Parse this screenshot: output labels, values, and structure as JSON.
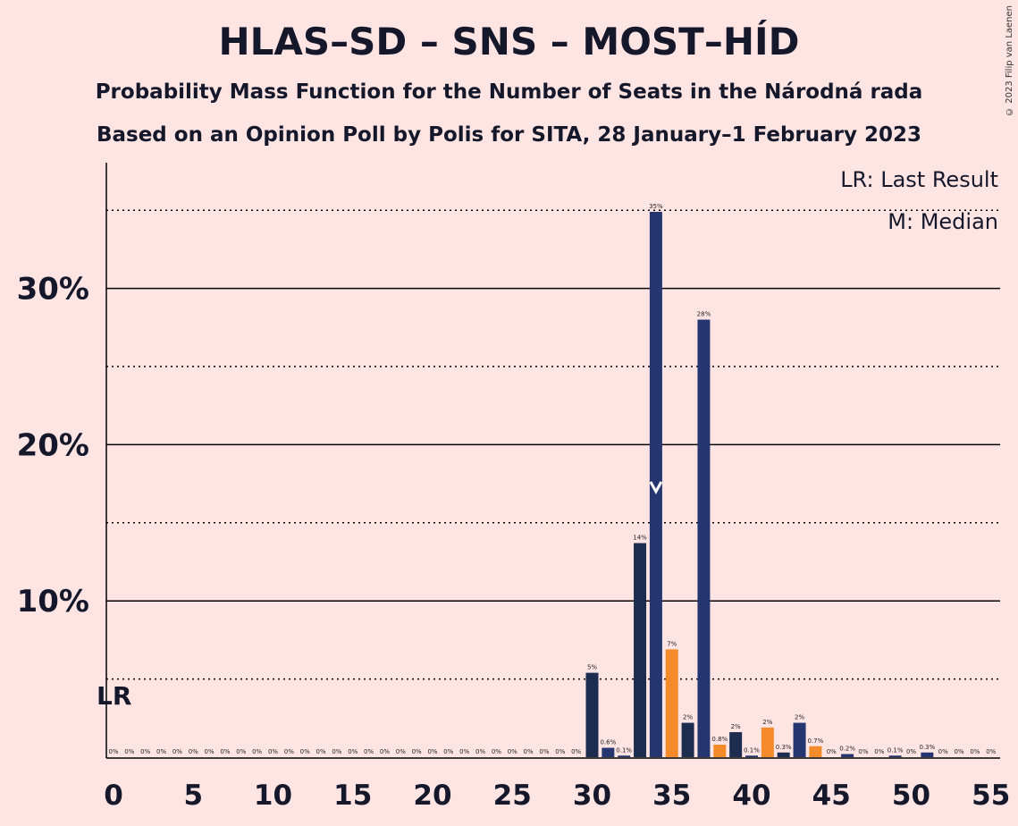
{
  "header": {
    "title": "HLAS–SD – SNS – MOST–HÍD",
    "subtitle1": "Probability Mass Function for the Number of Seats in the Národná rada",
    "subtitle2": "Based on an Opinion Poll by Polis for SITA, 28 January–1 February 2023",
    "copyright": "© 2023 Filip van Laenen"
  },
  "chart_data": {
    "type": "bar",
    "title": "HLAS–SD – SNS – MOST–HÍD",
    "xlabel": "",
    "ylabel": "",
    "xlim": [
      0,
      55
    ],
    "ylim": [
      0,
      38
    ],
    "x_ticks": [
      "0",
      "5",
      "10",
      "15",
      "20",
      "25",
      "30",
      "35",
      "40",
      "45",
      "50",
      "55"
    ],
    "y_ticks": [
      "10%",
      "20%",
      "30%"
    ],
    "y_gridlines_solid": [
      10,
      20,
      30
    ],
    "y_gridlines_dotted": [
      5,
      15,
      25,
      35
    ],
    "legend": [
      "LR: Last Result",
      "M: Median"
    ],
    "legend_position": "top-right",
    "last_result": {
      "seat": 0,
      "label": "LR"
    },
    "median": {
      "seat": 34,
      "label": "M"
    },
    "colors": {
      "normal": "#253570",
      "dark": "#1d2d50",
      "majority": "#f58a2a"
    },
    "bars": [
      {
        "seat": 0,
        "value": 0,
        "label": "0%",
        "color": "normal"
      },
      {
        "seat": 1,
        "value": 0,
        "label": "0%",
        "color": "normal"
      },
      {
        "seat": 2,
        "value": 0,
        "label": "0%",
        "color": "normal"
      },
      {
        "seat": 3,
        "value": 0,
        "label": "0%",
        "color": "normal"
      },
      {
        "seat": 4,
        "value": 0,
        "label": "0%",
        "color": "normal"
      },
      {
        "seat": 5,
        "value": 0,
        "label": "0%",
        "color": "normal"
      },
      {
        "seat": 6,
        "value": 0,
        "label": "0%",
        "color": "normal"
      },
      {
        "seat": 7,
        "value": 0,
        "label": "0%",
        "color": "normal"
      },
      {
        "seat": 8,
        "value": 0,
        "label": "0%",
        "color": "normal"
      },
      {
        "seat": 9,
        "value": 0,
        "label": "0%",
        "color": "normal"
      },
      {
        "seat": 10,
        "value": 0,
        "label": "0%",
        "color": "normal"
      },
      {
        "seat": 11,
        "value": 0,
        "label": "0%",
        "color": "normal"
      },
      {
        "seat": 12,
        "value": 0,
        "label": "0%",
        "color": "normal"
      },
      {
        "seat": 13,
        "value": 0,
        "label": "0%",
        "color": "normal"
      },
      {
        "seat": 14,
        "value": 0,
        "label": "0%",
        "color": "normal"
      },
      {
        "seat": 15,
        "value": 0,
        "label": "0%",
        "color": "normal"
      },
      {
        "seat": 16,
        "value": 0,
        "label": "0%",
        "color": "normal"
      },
      {
        "seat": 17,
        "value": 0,
        "label": "0%",
        "color": "normal"
      },
      {
        "seat": 18,
        "value": 0,
        "label": "0%",
        "color": "normal"
      },
      {
        "seat": 19,
        "value": 0,
        "label": "0%",
        "color": "normal"
      },
      {
        "seat": 20,
        "value": 0,
        "label": "0%",
        "color": "normal"
      },
      {
        "seat": 21,
        "value": 0,
        "label": "0%",
        "color": "normal"
      },
      {
        "seat": 22,
        "value": 0,
        "label": "0%",
        "color": "normal"
      },
      {
        "seat": 23,
        "value": 0,
        "label": "0%",
        "color": "normal"
      },
      {
        "seat": 24,
        "value": 0,
        "label": "0%",
        "color": "normal"
      },
      {
        "seat": 25,
        "value": 0,
        "label": "0%",
        "color": "normal"
      },
      {
        "seat": 26,
        "value": 0,
        "label": "0%",
        "color": "normal"
      },
      {
        "seat": 27,
        "value": 0,
        "label": "0%",
        "color": "normal"
      },
      {
        "seat": 28,
        "value": 0,
        "label": "0%",
        "color": "normal"
      },
      {
        "seat": 29,
        "value": 0,
        "label": "0%",
        "color": "normal"
      },
      {
        "seat": 30,
        "value": 5.4,
        "label": "5%",
        "color": "dark"
      },
      {
        "seat": 31,
        "value": 0.6,
        "label": "0.6%",
        "color": "normal"
      },
      {
        "seat": 32,
        "value": 0.1,
        "label": "0.1%",
        "color": "normal"
      },
      {
        "seat": 33,
        "value": 13.7,
        "label": "14%",
        "color": "dark"
      },
      {
        "seat": 34,
        "value": 34.9,
        "label": "35%",
        "color": "normal"
      },
      {
        "seat": 35,
        "value": 6.9,
        "label": "7%",
        "color": "majority"
      },
      {
        "seat": 36,
        "value": 2.2,
        "label": "2%",
        "color": "dark"
      },
      {
        "seat": 37,
        "value": 28.0,
        "label": "28%",
        "color": "normal"
      },
      {
        "seat": 38,
        "value": 0.8,
        "label": "0.8%",
        "color": "majority"
      },
      {
        "seat": 39,
        "value": 1.6,
        "label": "2%",
        "color": "dark"
      },
      {
        "seat": 40,
        "value": 0.1,
        "label": "0.1%",
        "color": "normal"
      },
      {
        "seat": 41,
        "value": 1.9,
        "label": "2%",
        "color": "majority"
      },
      {
        "seat": 42,
        "value": 0.3,
        "label": "0.3%",
        "color": "dark"
      },
      {
        "seat": 43,
        "value": 2.2,
        "label": "2%",
        "color": "normal"
      },
      {
        "seat": 44,
        "value": 0.7,
        "label": "0.7%",
        "color": "majority"
      },
      {
        "seat": 45,
        "value": 0,
        "label": "0%",
        "color": "normal"
      },
      {
        "seat": 46,
        "value": 0.2,
        "label": "0.2%",
        "color": "normal"
      },
      {
        "seat": 47,
        "value": 0,
        "label": "0%",
        "color": "normal"
      },
      {
        "seat": 48,
        "value": 0,
        "label": "0%",
        "color": "normal"
      },
      {
        "seat": 49,
        "value": 0.1,
        "label": "0.1%",
        "color": "normal"
      },
      {
        "seat": 50,
        "value": 0,
        "label": "0%",
        "color": "normal"
      },
      {
        "seat": 51,
        "value": 0.3,
        "label": "0.3%",
        "color": "normal"
      },
      {
        "seat": 52,
        "value": 0,
        "label": "0%",
        "color": "normal"
      },
      {
        "seat": 53,
        "value": 0,
        "label": "0%",
        "color": "normal"
      },
      {
        "seat": 54,
        "value": 0,
        "label": "0%",
        "color": "normal"
      },
      {
        "seat": 55,
        "value": 0,
        "label": "0%",
        "color": "normal"
      }
    ]
  }
}
